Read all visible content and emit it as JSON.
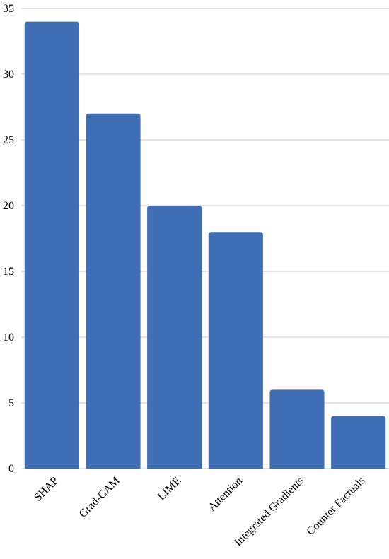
{
  "chart_data": {
    "type": "bar",
    "categories": [
      "SHAP",
      "Grad-CAM",
      "LIME",
      "Attention",
      "Integrated Gradients",
      "Counter Factuals"
    ],
    "values": [
      34,
      27,
      20,
      18,
      6,
      4
    ],
    "color": "#3f6eb5",
    "ylim": [
      0,
      35
    ],
    "yticks": [
      0,
      5,
      10,
      15,
      20,
      25,
      30,
      35
    ],
    "grid": true
  }
}
